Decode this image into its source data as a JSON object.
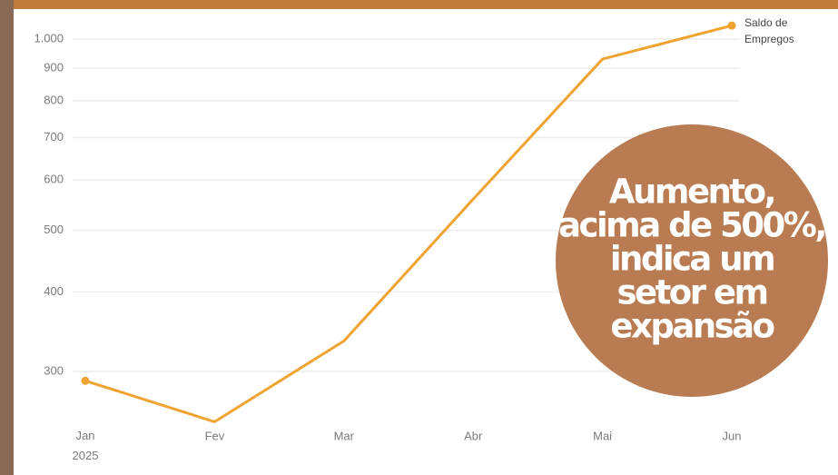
{
  "chart_data": {
    "type": "line",
    "log_y": true,
    "grid": true,
    "categories": [
      "Jan 2025",
      "Fev",
      "Mar",
      "Abr",
      "Mai",
      "Jun"
    ],
    "series": [
      {
        "name": "Saldo de Empregos",
        "color": "#f0a331",
        "values": [
          290,
          250,
          335,
          560,
          930,
          1050
        ]
      }
    ],
    "ylim": [
      240,
      1080
    ],
    "yticks": [
      300,
      400,
      500,
      600,
      700,
      800,
      900,
      {
        "value": 1000,
        "label": "1.000"
      }
    ],
    "annotation": [
      "Aumento,",
      "acima de 500%,",
      "indica um",
      "setor em",
      "expansão"
    ]
  }
}
